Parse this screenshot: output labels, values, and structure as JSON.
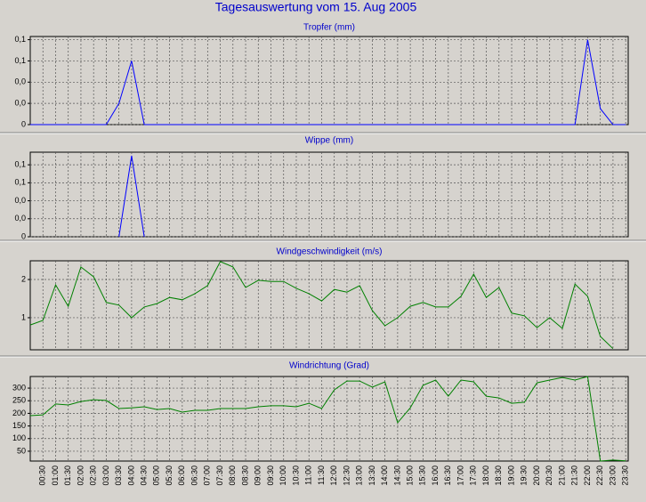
{
  "title": "Tagesauswertung vom 15. Aug 2005",
  "chart_data": [
    {
      "type": "line",
      "title": "Tropfer (mm)",
      "color": "#0000ff",
      "ylim": [
        0,
        0.083
      ],
      "yticks": [
        0,
        {
          "value": 0.02,
          "label": "0,0"
        },
        {
          "value": 0.04,
          "label": "0,0"
        },
        {
          "value": 0.06,
          "label": "0,1"
        },
        {
          "value": 0.08,
          "label": "0,1"
        }
      ],
      "values": [
        0,
        0,
        0,
        0,
        0,
        0,
        0,
        0.02,
        0.06,
        0,
        0,
        0,
        0,
        0,
        0,
        0,
        0,
        0,
        0,
        0,
        0,
        0,
        0,
        0,
        0,
        0,
        0,
        0,
        0,
        0,
        0,
        0,
        0,
        0,
        0,
        0,
        0,
        0,
        0,
        0,
        0,
        0,
        0,
        0,
        0.08,
        0.015,
        0,
        0
      ]
    },
    {
      "type": "line",
      "title": "Wippe (mm)",
      "color": "#0000ff",
      "ylim": [
        0,
        0.094
      ],
      "yticks": [
        0,
        {
          "value": 0.02,
          "label": "0,0"
        },
        {
          "value": 0.04,
          "label": "0,0"
        },
        {
          "value": 0.06,
          "label": "0,1"
        },
        {
          "value": 0.08,
          "label": "0,1"
        }
      ],
      "values": [
        null,
        null,
        null,
        null,
        null,
        null,
        null,
        0,
        0.09,
        0,
        null,
        null,
        null,
        null,
        null,
        null,
        null,
        null,
        null,
        null,
        null,
        null,
        null,
        null,
        null,
        null,
        null,
        null,
        null,
        null,
        null,
        null,
        null,
        null,
        null,
        null,
        null,
        null,
        null,
        null,
        null,
        null,
        null,
        null,
        null,
        null,
        null,
        null
      ]
    },
    {
      "type": "line",
      "title": "Windgeschwindigkeit (m/s)",
      "color": "#008000",
      "ylim": [
        0.16,
        2.49
      ],
      "yticks": [
        1,
        2
      ],
      "values": [
        0.81,
        0.93,
        1.86,
        1.3,
        2.33,
        2.07,
        1.4,
        1.33,
        1.0,
        1.28,
        1.37,
        1.53,
        1.47,
        1.63,
        1.84,
        2.47,
        2.33,
        1.79,
        1.98,
        1.95,
        1.95,
        1.77,
        1.63,
        1.44,
        1.74,
        1.67,
        1.84,
        1.19,
        0.79,
        1.0,
        1.3,
        1.4,
        1.28,
        1.28,
        1.56,
        2.14,
        1.53,
        1.79,
        1.12,
        1.05,
        0.74,
        1.0,
        0.72,
        1.88,
        1.56,
        0.51,
        0.19,
        null
      ]
    },
    {
      "type": "line",
      "title": "Windrichtung (Grad)",
      "color": "#008000",
      "ylim": [
        11,
        346
      ],
      "yticks": [
        50,
        100,
        150,
        200,
        250,
        300
      ],
      "categories": [
        null,
        "00:30",
        "01:00",
        "01:30",
        "02:00",
        "02:30",
        "03:00",
        "03:30",
        "04:00",
        "04:30",
        "05:00",
        "05:30",
        "06:00",
        "06:30",
        "07:00",
        "07:30",
        "08:00",
        "08:30",
        "09:00",
        "09:30",
        "10:00",
        "10:30",
        "11:00",
        "11:30",
        "12:00",
        "12:30",
        "13:00",
        "13:30",
        "14:00",
        "14:30",
        "15:00",
        "15:30",
        "16:00",
        "16:30",
        "17:00",
        "17:30",
        "18:00",
        "18:30",
        "19:00",
        "19:30",
        "20:00",
        "20:30",
        "21:00",
        "21:30",
        "22:00",
        "22:30",
        "23:00",
        "23:30"
      ],
      "values": [
        191,
        194,
        237,
        233,
        247,
        254,
        251,
        219,
        222,
        226,
        215,
        219,
        205,
        212,
        212,
        219,
        219,
        219,
        226,
        230,
        230,
        226,
        240,
        219,
        293,
        328,
        328,
        304,
        325,
        163,
        222,
        311,
        332,
        268,
        332,
        325,
        268,
        261,
        240,
        244,
        321,
        332,
        342,
        332,
        346,
        11,
        15,
        12
      ]
    }
  ]
}
